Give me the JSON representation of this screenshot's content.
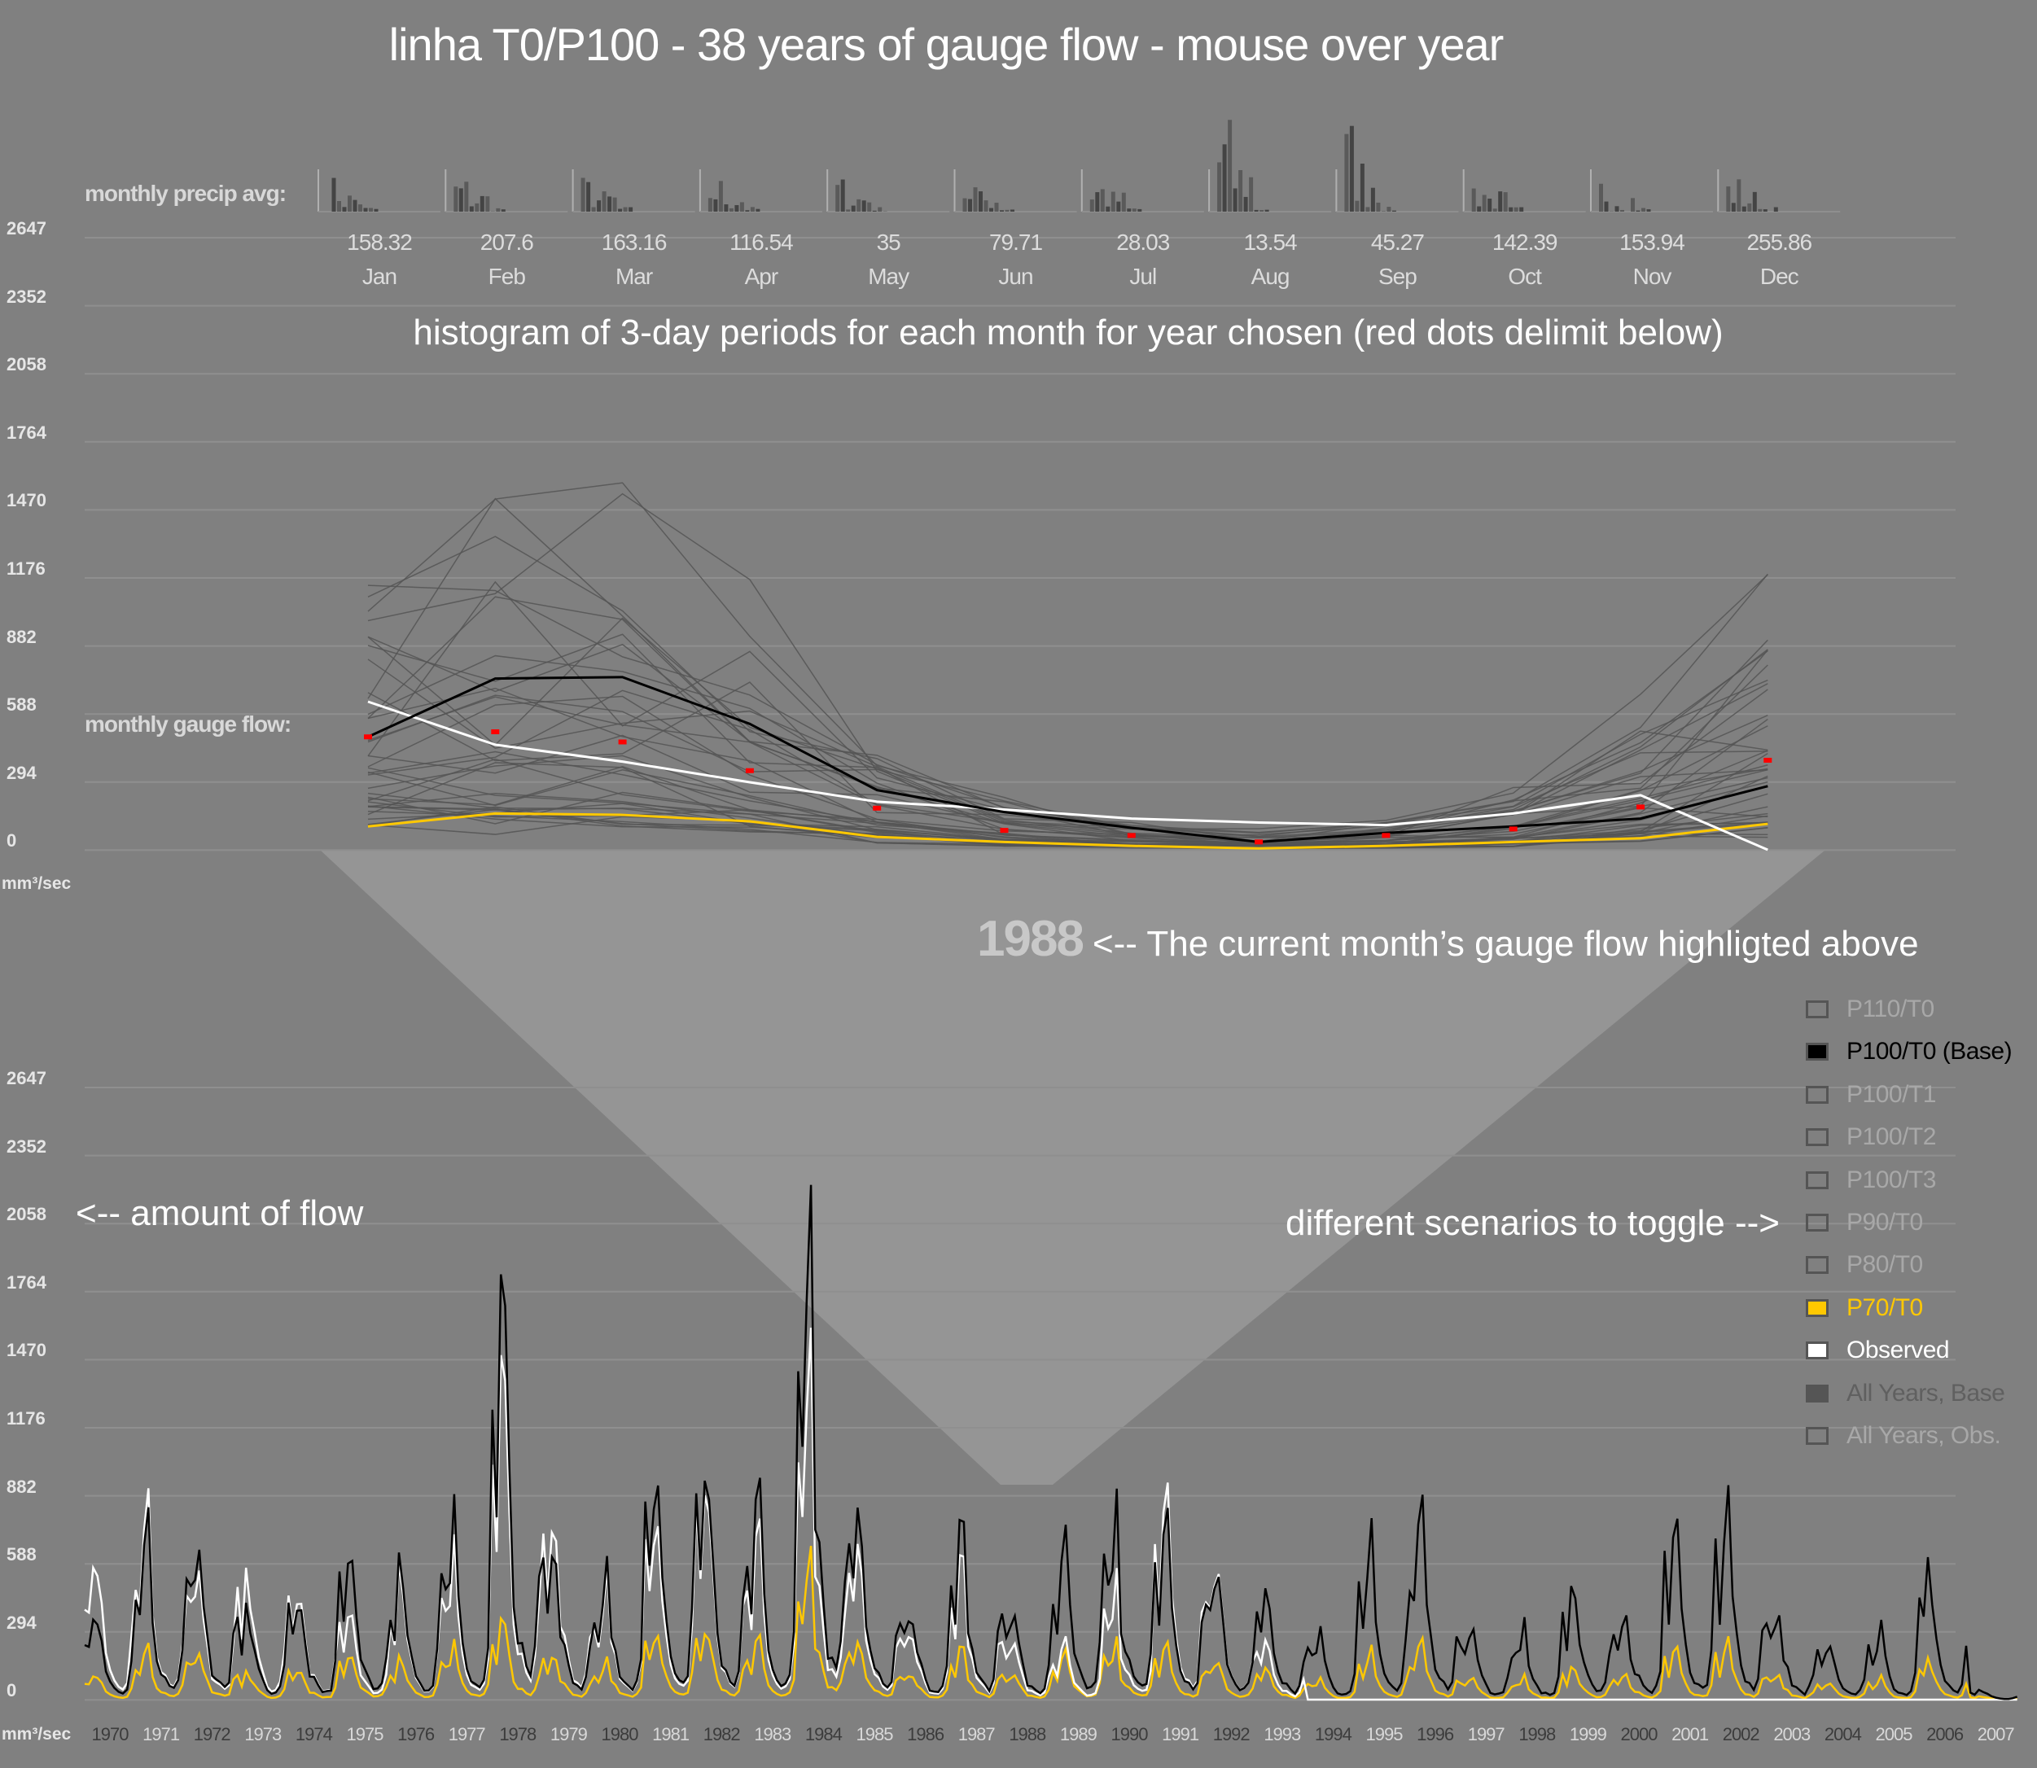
{
  "title": "linha T0/P100 - 38 years of gauge flow - mouse over year",
  "precip_label": "monthly precip avg:",
  "histogram_note": "histogram of 3-day periods for each month for year chosen (red dots delimit below)",
  "gauge_label": "monthly gauge flow:",
  "unit_label": "mm³/sec",
  "current_year": "1988",
  "current_year_note": "<-- The current month’s gauge flow highligted above",
  "flow_note": "<-- amount of flow",
  "scenario_note": "different scenarios to toggle -->",
  "colors": {
    "background": "#808080",
    "base": "#000000",
    "observed": "#ffffff",
    "p70": "#ffc800",
    "all_years": "#555555",
    "marker": "#ff0000",
    "highlight": "#959595"
  },
  "legend": [
    {
      "label": "P110/T0",
      "state": "off",
      "color": "#a8a8a8"
    },
    {
      "label": "P100/T0 (Base)",
      "state": "on",
      "color": "#000000"
    },
    {
      "label": "P100/T1",
      "state": "off",
      "color": "#a8a8a8"
    },
    {
      "label": "P100/T2",
      "state": "off",
      "color": "#a8a8a8"
    },
    {
      "label": "P100/T3",
      "state": "off",
      "color": "#a8a8a8"
    },
    {
      "label": "P90/T0",
      "state": "off",
      "color": "#a8a8a8"
    },
    {
      "label": "P80/T0",
      "state": "off",
      "color": "#a8a8a8"
    },
    {
      "label": "P70/T0",
      "state": "on",
      "color": "#ffc800"
    },
    {
      "label": "Observed",
      "state": "on",
      "color": "#ffffff"
    },
    {
      "label": "All Years, Base",
      "state": "on",
      "color": "#555555"
    },
    {
      "label": "All Years, Obs.",
      "state": "off",
      "color": "#a8a8a8"
    }
  ],
  "chart_data": [
    {
      "type": "bar",
      "title": "monthly precip avg:",
      "categories": [
        "Jan",
        "Feb",
        "Mar",
        "Apr",
        "May",
        "Jun",
        "Jul",
        "Aug",
        "Sep",
        "Oct",
        "Nov",
        "Dec"
      ],
      "values_text": [
        "158.32",
        "207.6",
        "163.16",
        "116.54",
        "35",
        "79.71",
        "28.03",
        "13.54",
        "45.27",
        "142.39",
        "153.94",
        "255.86"
      ]
    },
    {
      "type": "line",
      "title": "monthly gauge flow:",
      "categories": [
        "Jan",
        "Feb",
        "Mar",
        "Apr",
        "May",
        "Jun",
        "Jul",
        "Aug",
        "Sep",
        "Oct",
        "Nov",
        "Dec"
      ],
      "ylabel": "mm³/sec",
      "yticks": [
        "2647",
        "2352",
        "2058",
        "1764",
        "1470",
        "1176",
        "882",
        "588",
        "294",
        "0"
      ],
      "ylim": [
        0,
        2647
      ],
      "grid": true,
      "series": [
        {
          "name": "P100/T0 (Base)",
          "color": "#000000",
          "values": [
            488,
            740,
            746,
            544,
            258,
            163,
            95,
            34,
            73,
            101,
            135,
            275
          ]
        },
        {
          "name": "Observed",
          "color": "#ffffff",
          "values": [
            640,
            454,
            381,
            292,
            208,
            174,
            135,
            118,
            107,
            157,
            236,
            0
          ]
        },
        {
          "name": "P70/T0",
          "color": "#ffc800",
          "values": [
            101,
            157,
            151,
            123,
            56,
            34,
            17,
            6,
            17,
            34,
            50,
            112
          ]
        }
      ],
      "markers": [
        488,
        510,
        466,
        342,
        180,
        84,
        62,
        34,
        62,
        90,
        185,
        387
      ]
    },
    {
      "type": "line",
      "ylabel": "mm³/sec",
      "yticks": [
        "2647",
        "2352",
        "2058",
        "1764",
        "1470",
        "1176",
        "882",
        "588",
        "294",
        "0"
      ],
      "ylim": [
        0,
        2647
      ],
      "grid": true,
      "x": [
        "1970",
        "1971",
        "1972",
        "1973",
        "1974",
        "1975",
        "1976",
        "1977",
        "1978",
        "1979",
        "1980",
        "1981",
        "1982",
        "1983",
        "1984",
        "1985",
        "1986",
        "1987",
        "1988",
        "1989",
        "1990",
        "1991",
        "1992",
        "1993",
        "1994",
        "1995",
        "1996",
        "1997",
        "1998",
        "1999",
        "2000",
        "2001",
        "2002",
        "2003",
        "2004",
        "2005",
        "2006",
        "2007"
      ],
      "series": [
        {
          "name": "P100/T0 (Base)",
          "color": "#000000",
          "annual_peak": [
            449,
            746,
            813,
            404,
            466,
            628,
            634,
            746,
            1728,
            718,
            634,
            1111,
            1072,
            858,
            2076,
            802,
            438,
            746,
            449,
            690,
            802,
            830,
            606,
            522,
            297,
            662,
            830,
            325,
            325,
            522,
            494,
            718,
            813,
            410,
            297,
            325,
            578,
            45
          ]
        },
        {
          "name": "Observed",
          "color": "#ffffff",
          "annual_peak": [
            740,
            820,
            700,
            550,
            500,
            380,
            590,
            600,
            1400,
            840,
            580,
            900,
            1000,
            700,
            1500,
            650,
            350,
            600,
            300,
            250,
            500,
            940,
            620,
            280,
            0,
            0,
            0,
            0,
            0,
            0,
            0,
            0,
            0,
            0,
            0,
            0,
            0,
            0
          ]
        },
        {
          "name": "P70/T0",
          "color": "#ffc800",
          "annual_peak": [
            130,
            220,
            250,
            120,
            140,
            190,
            190,
            220,
            330,
            210,
            190,
            330,
            320,
            250,
            620,
            240,
            130,
            220,
            130,
            200,
            240,
            250,
            180,
            150,
            90,
            200,
            250,
            100,
            100,
            150,
            150,
            210,
            240,
            120,
            90,
            100,
            170,
            15
          ]
        }
      ]
    }
  ]
}
